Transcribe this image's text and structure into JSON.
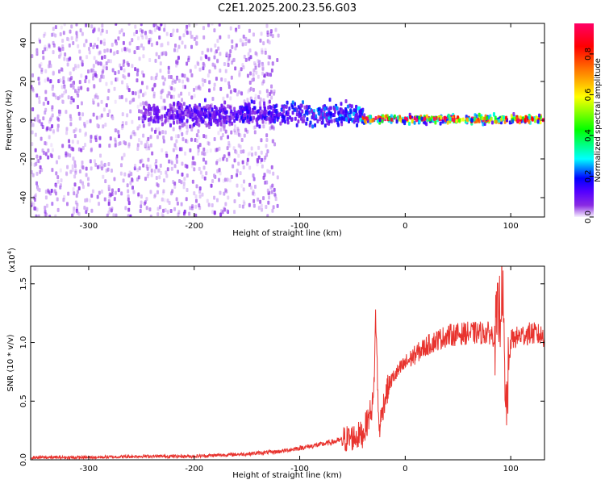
{
  "title": "C2E1.2025.200.23.56.G03",
  "chart_data": [
    {
      "type": "heatmap",
      "xlabel": "Height of straight line (km)",
      "ylabel": "Frequency (Hz)",
      "xlim": [
        -355,
        132
      ],
      "ylim": [
        -50,
        50
      ],
      "xticks": [
        "-300",
        "-200",
        "-100",
        "0",
        "100"
      ],
      "yticks": [
        "-40",
        "-20",
        "0",
        "20",
        "40"
      ],
      "colorbar": {
        "label": "Normalized spectral amplitude",
        "range": [
          0,
          0.95
        ],
        "ticks": [
          "0.0",
          "0.2",
          "0.4",
          "0.6",
          "0.8"
        ],
        "colors": [
          "#f7f0ff",
          "#8a2be2",
          "#5500ff",
          "#0000ff",
          "#00ffff",
          "#00ff00",
          "#ffff00",
          "#ff8000",
          "#ff0000",
          "#ff0066"
        ]
      },
      "features": [
        {
          "x_range": [
            -355,
            -120
          ],
          "freq_spread": 50,
          "amplitude": 0.05
        },
        {
          "x_range": [
            -250,
            -40
          ],
          "freq_center": 3,
          "freq_spread": 8,
          "amplitude": 0.25
        },
        {
          "x_range": [
            -40,
            132
          ],
          "freq_center": 0.5,
          "freq_spread": 3,
          "amplitude": 0.9
        }
      ]
    },
    {
      "type": "line",
      "xlabel": "Height of straight line (km)",
      "ylabel": "SNR (10 * v/v)",
      "yscale_note": "(x10",
      "yscale_exp": "4",
      "xlim": [
        -355,
        132
      ],
      "ylim": [
        0,
        1.65
      ],
      "xticks": [
        "-300",
        "-200",
        "-100",
        "0",
        "100"
      ],
      "yticks": [
        "0.0",
        "0.5",
        "1.0",
        "1.5"
      ],
      "series_color": "#e8332e",
      "series": [
        {
          "x": [
            -355,
            -300,
            -250,
            -200,
            -150,
            -120,
            -100,
            -80,
            -60,
            -50,
            -40,
            -35,
            -30,
            -28,
            -25,
            -20,
            -15,
            -10,
            0,
            10,
            20,
            30,
            40,
            50,
            60,
            70,
            80,
            85,
            90,
            92,
            95,
            100,
            110,
            120,
            132
          ],
          "values": [
            0.02,
            0.02,
            0.03,
            0.03,
            0.05,
            0.07,
            0.1,
            0.13,
            0.17,
            0.19,
            0.22,
            0.35,
            0.5,
            1.25,
            0.25,
            0.5,
            0.65,
            0.72,
            0.82,
            0.9,
            0.97,
            1.02,
            1.06,
            1.07,
            1.08,
            1.08,
            1.08,
            1.05,
            1.3,
            1.6,
            0.35,
            1.02,
            1.06,
            1.08,
            1.05
          ]
        }
      ]
    }
  ]
}
